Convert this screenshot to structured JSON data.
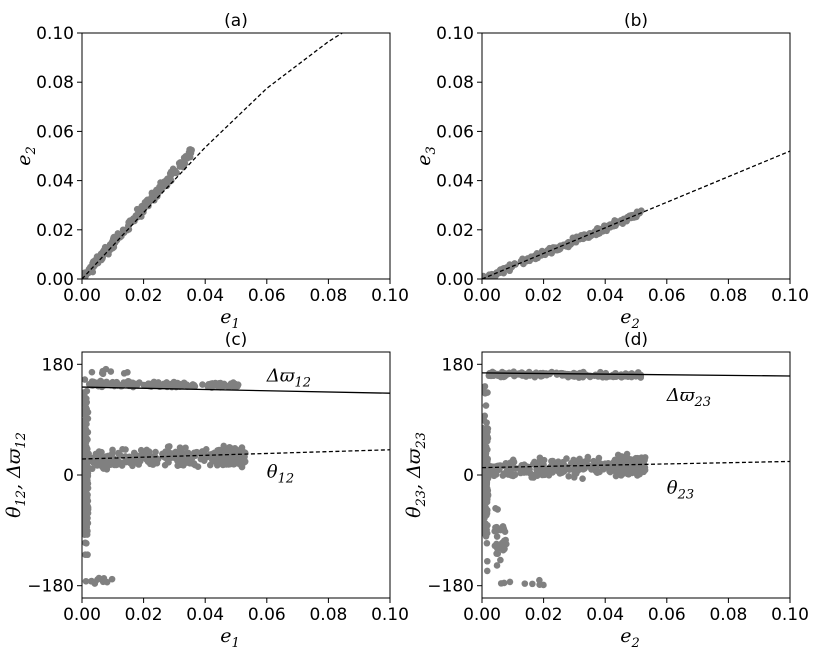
{
  "chart_data": [
    {
      "id": "a",
      "type": "scatter",
      "title": "(a)",
      "xlabel": {
        "base": "e",
        "sub": "1"
      },
      "ylabel": {
        "base": "e",
        "sub": "2"
      },
      "xlim": [
        0,
        0.1
      ],
      "ylim": [
        0,
        0.1
      ],
      "xticks": [
        0,
        0.02,
        0.04,
        0.06,
        0.08,
        0.1
      ],
      "xtick_labels": [
        "0.00",
        "0.02",
        "0.04",
        "0.06",
        "0.08",
        "0.10"
      ],
      "yticks": [
        0,
        0.02,
        0.04,
        0.06,
        0.08,
        0.1
      ],
      "ytick_labels": [
        "0.00",
        "0.02",
        "0.04",
        "0.06",
        "0.08",
        "0.10"
      ],
      "scatter_segments": [
        {
          "x0": 0.0,
          "x1": 0.036,
          "slope": 1.45,
          "intercept": 0.0,
          "spread": 0.003,
          "count": 230
        }
      ],
      "lines": [
        {
          "style": "dashed",
          "points": [
            [
              0,
              0
            ],
            [
              0.02,
              0.027
            ],
            [
              0.04,
              0.0535
            ],
            [
              0.06,
              0.0775
            ],
            [
              0.08,
              0.0965
            ],
            [
              0.0845,
              0.1
            ]
          ]
        }
      ],
      "annotations": []
    },
    {
      "id": "b",
      "type": "scatter",
      "title": "(b)",
      "xlabel": {
        "base": "e",
        "sub": "2"
      },
      "ylabel": {
        "base": "e",
        "sub": "3"
      },
      "xlim": [
        0,
        0.1
      ],
      "ylim": [
        0,
        0.1
      ],
      "xticks": [
        0,
        0.02,
        0.04,
        0.06,
        0.08,
        0.1
      ],
      "xtick_labels": [
        "0.00",
        "0.02",
        "0.04",
        "0.06",
        "0.08",
        "0.10"
      ],
      "yticks": [
        0,
        0.02,
        0.04,
        0.06,
        0.08,
        0.1
      ],
      "ytick_labels": [
        "0.00",
        "0.02",
        "0.04",
        "0.06",
        "0.08",
        "0.10"
      ],
      "scatter_segments": [
        {
          "x0": 0.0,
          "x1": 0.052,
          "slope": 0.52,
          "intercept": 0.0,
          "spread": 0.0018,
          "count": 230
        }
      ],
      "lines": [
        {
          "style": "dashed",
          "points": [
            [
              0,
              0
            ],
            [
              0.1,
              0.052
            ]
          ]
        }
      ],
      "annotations": []
    },
    {
      "id": "c",
      "type": "scatter",
      "title": "(c)",
      "xlabel": {
        "base": "e",
        "sub": "1"
      },
      "ylabel_text": "θ12, Δϖ12",
      "ylabel": {
        "base": "θ",
        "sub": "12",
        "sep": ", ",
        "base2": "Δϖ",
        "sub2": "12"
      },
      "xlim": [
        0,
        0.1
      ],
      "ylim": [
        -200,
        200
      ],
      "xticks": [
        0,
        0.02,
        0.04,
        0.06,
        0.08,
        0.1
      ],
      "xtick_labels": [
        "0.00",
        "0.02",
        "0.04",
        "0.06",
        "0.08",
        "0.10"
      ],
      "yticks": [
        -180,
        0,
        180
      ],
      "ytick_labels": [
        "−180",
        "0",
        "180"
      ],
      "scatter_segments": [
        {
          "x0": 0.0,
          "x1": 0.002,
          "slope": 0,
          "intercept": 0,
          "spread": 180,
          "count": 170
        },
        {
          "x0": 0.002,
          "x1": 0.052,
          "slope": -50,
          "intercept": 148,
          "spread": 7,
          "count": 170
        },
        {
          "x0": 0.002,
          "x1": 0.052,
          "slope": 120,
          "intercept": 24,
          "spread": 22,
          "count": 230
        },
        {
          "x0": 0.044,
          "x1": 0.053,
          "slope": 0,
          "intercept": 30,
          "spread": 24,
          "count": 160
        },
        {
          "x0": 0.001,
          "x1": 0.011,
          "slope": 0,
          "intercept": -172,
          "spread": 7,
          "count": 10
        },
        {
          "x0": 0.003,
          "x1": 0.015,
          "slope": 0,
          "intercept": 168,
          "spread": 7,
          "count": 8
        }
      ],
      "lines": [
        {
          "style": "solid",
          "points": [
            [
              0,
              143
            ],
            [
              0.1,
              133
            ]
          ]
        },
        {
          "style": "dashed",
          "points": [
            [
              0,
              26
            ],
            [
              0.1,
              41
            ]
          ]
        }
      ],
      "annotations": [
        {
          "text": "Δϖ12",
          "base": "Δϖ",
          "sub": "12",
          "x": 0.06,
          "y": 152
        },
        {
          "text": "θ12",
          "base": "θ",
          "sub": "12",
          "x": 0.06,
          "y": -4
        }
      ]
    },
    {
      "id": "d",
      "type": "scatter",
      "title": "(d)",
      "xlabel": {
        "base": "e",
        "sub": "2"
      },
      "ylabel_text": "θ23, Δϖ23",
      "ylabel": {
        "base": "θ",
        "sub": "23",
        "sep": ", ",
        "base2": "Δϖ",
        "sub2": "23"
      },
      "xlim": [
        0,
        0.1
      ],
      "ylim": [
        -200,
        200
      ],
      "xticks": [
        0,
        0.02,
        0.04,
        0.06,
        0.08,
        0.1
      ],
      "xtick_labels": [
        "0.00",
        "0.02",
        "0.04",
        "0.06",
        "0.08",
        "0.10"
      ],
      "yticks": [
        -180,
        0,
        180
      ],
      "ytick_labels": [
        "−180",
        "0",
        "180"
      ],
      "scatter_segments": [
        {
          "x0": 0.0,
          "x1": 0.002,
          "slope": 0,
          "intercept": 0,
          "spread": 180,
          "count": 170
        },
        {
          "x0": 0.002,
          "x1": 0.052,
          "slope": -40,
          "intercept": 164,
          "spread": 6,
          "count": 170
        },
        {
          "x0": 0.002,
          "x1": 0.052,
          "slope": 100,
          "intercept": 10,
          "spread": 22,
          "count": 230
        },
        {
          "x0": 0.044,
          "x1": 0.053,
          "slope": 0,
          "intercept": 15,
          "spread": 22,
          "count": 160
        },
        {
          "x0": 0.004,
          "x1": 0.008,
          "slope": 0,
          "intercept": -100,
          "spread": 60,
          "count": 30
        },
        {
          "x0": 0.006,
          "x1": 0.02,
          "slope": 0,
          "intercept": -176,
          "spread": 6,
          "count": 8
        }
      ],
      "lines": [
        {
          "style": "solid",
          "points": [
            [
              0,
              166
            ],
            [
              0.1,
              161
            ]
          ]
        },
        {
          "style": "dashed",
          "points": [
            [
              0,
              12
            ],
            [
              0.1,
              22
            ]
          ]
        }
      ],
      "annotations": [
        {
          "text": "Δϖ23",
          "base": "Δϖ",
          "sub": "23",
          "x": 0.06,
          "y": 120
        },
        {
          "text": "θ23",
          "base": "θ",
          "sub": "23",
          "x": 0.06,
          "y": -30
        }
      ]
    }
  ],
  "colors": {
    "points": "#808080",
    "lines": "#000000",
    "axes": "#000000",
    "background": "#ffffff"
  }
}
